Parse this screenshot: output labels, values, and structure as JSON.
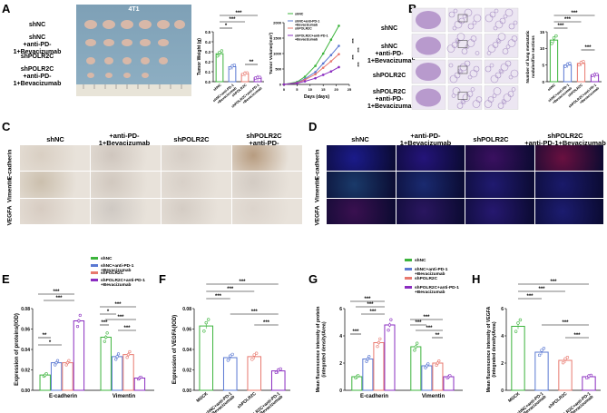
{
  "panels": {
    "A": "A",
    "B": "B",
    "C": "C",
    "D": "D",
    "E": "E",
    "F": "F",
    "G": "G",
    "H": "H"
  },
  "groups": [
    "shNC",
    "shNC\n+anti-PD-1+Bevacizumab",
    "shPOLR2C",
    "shPOLR2C\n+anti-PD-1+Bevacizumab"
  ],
  "groups_inline": [
    "shNC",
    "+anti-PD-1+Bevacizumab",
    "shPOLR2C",
    "shPOLR2C\n+anti-PD-1+Bevacizumab"
  ],
  "legend_groups": [
    "shNC",
    "shNC+anti-PD-1\n+Bevacizumab",
    "shPOLR2C",
    "shPOLR2C+anti-PD-1\n+Bevacizumab"
  ],
  "legend_groups_small": [
    "shNC",
    "shNC+anti-PD-1\n+Bevacizumab",
    "shPOLR2C",
    "shPOLR2C+anti-PD-1\n+Bevacizumab"
  ],
  "mock_groups": [
    "MOCK",
    "shNC+anti-PD-1\n+Bevacizumab",
    "shPOLR2C",
    "shPOLR2C+anti-PD-1\n+Bevacizumab"
  ],
  "photo_title": "4T1",
  "markers": [
    "E-cadherin",
    "Vimentin",
    "VEGFA"
  ],
  "colors": {
    "shNC": "#3cb43c",
    "combo": "#5a78d2",
    "shPOLR2C": "#e8786e",
    "polr_combo": "#8a2cc0"
  },
  "sig": {
    "s1": "*",
    "s2": "**",
    "s3": "***"
  },
  "chart_data": [
    {
      "panel": "A-weight",
      "type": "bar",
      "ylabel": "Tumor Weight (g)",
      "ylim": [
        0,
        0.5
      ],
      "yticks": [
        "0.0",
        "0.1",
        "0.2",
        "0.3",
        "0.4",
        "0.5"
      ],
      "categories": [
        "shNC",
        "shNC+anti-PD-1\n+Bevacizumab",
        "shPOLR2C",
        "shPOLR2C+anti-PD-1\n+Bevacizumab"
      ],
      "values": [
        0.28,
        0.15,
        0.08,
        0.04
      ]
    },
    {
      "panel": "A-volume",
      "type": "line",
      "ylabel": "Tumor Volume(mm³)",
      "xlabel": "Days (days)",
      "xticks": [
        "0",
        "5",
        "10",
        "15",
        "20",
        "25"
      ],
      "yticks": [
        "0",
        "500",
        "1000",
        "1500",
        "2000"
      ],
      "x": [
        0,
        5,
        8,
        12,
        15,
        18,
        21
      ],
      "series": [
        {
          "name": "shNC",
          "values": [
            0,
            80,
            250,
            600,
            1000,
            1450,
            1900
          ]
        },
        {
          "name": "shNC+anti-PD-1\n+Bevacizumab",
          "values": [
            0,
            60,
            180,
            400,
            680,
            950,
            1250
          ]
        },
        {
          "name": "shPOLR2C",
          "values": [
            0,
            50,
            150,
            330,
            540,
            750,
            980
          ]
        },
        {
          "name": "shPOLR2C+anti-PD-1\n+Bevacizumab",
          "values": [
            0,
            40,
            100,
            200,
            310,
            420,
            560
          ]
        }
      ]
    },
    {
      "panel": "B",
      "type": "bar",
      "ylabel": "Number of lung metastatic\nnodules/five sections",
      "ylim": [
        0,
        15
      ],
      "yticks": [
        "0",
        "5",
        "10",
        "15"
      ],
      "categories": [
        "shNC",
        "shNC+anti-PD-1\n+Bevacizumab",
        "shPOLR2C",
        "shPOLR2C+anti-PD-1\n+Bevacizumab"
      ],
      "values": [
        12.5,
        5.0,
        5.5,
        2.0
      ]
    },
    {
      "panel": "E",
      "type": "bar",
      "ylabel": "Expression of proteins(IOD)",
      "ylim": [
        0,
        0.08
      ],
      "yticks": [
        "0.00",
        "0.02",
        "0.04",
        "0.06",
        "0.08"
      ],
      "categories": [
        "E-cadherin",
        "Vimentin"
      ],
      "series": [
        {
          "name": "shNC",
          "values": [
            0.015,
            0.052
          ]
        },
        {
          "name": "shNC+anti-PD-1\n+Bevacizumab",
          "values": [
            0.027,
            0.033
          ]
        },
        {
          "name": "shPOLR2C",
          "values": [
            0.027,
            0.035
          ]
        },
        {
          "name": "shPOLR2C+anti-PD-1\n+Bevacizumab",
          "values": [
            0.068,
            0.012
          ]
        }
      ]
    },
    {
      "panel": "F",
      "type": "bar",
      "ylabel": "Expression of VEGFA(IOD)",
      "ylim": [
        0,
        0.08
      ],
      "yticks": [
        "0.00",
        "0.02",
        "0.04",
        "0.06",
        "0.08"
      ],
      "categories": [
        "MOCK",
        "shNC+anti-PD-1\n+Bevacizumab",
        "shPOLR2C",
        "shPOLR2C+anti-PD-1\n+Bevacizumab"
      ],
      "values": [
        0.063,
        0.032,
        0.033,
        0.019
      ]
    },
    {
      "panel": "G",
      "type": "bar",
      "ylabel": "Mean fluorescence intensity of protein\n(integrated density/Area)",
      "ylim": [
        0,
        6
      ],
      "yticks": [
        "0",
        "2",
        "4",
        "6"
      ],
      "categories": [
        "E-cadherin",
        "Vimentin"
      ],
      "series": [
        {
          "name": "shNC",
          "values": [
            1.0,
            3.2
          ]
        },
        {
          "name": "shNC+anti-PD-1\n+Bevacizumab",
          "values": [
            2.3,
            1.8
          ]
        },
        {
          "name": "shPOLR2C",
          "values": [
            3.5,
            2.0
          ]
        },
        {
          "name": "shPOLR2C+anti-PD-1\n+Bevacizumab",
          "values": [
            4.8,
            1.0
          ]
        }
      ]
    },
    {
      "panel": "H",
      "type": "bar",
      "ylabel": "Mean fluorescence intensity of VEGFA\n(integrated density/Area)",
      "ylim": [
        0,
        6
      ],
      "yticks": [
        "0",
        "2",
        "4",
        "6"
      ],
      "categories": [
        "MOCK",
        "shNC+anti-PD-1\n+Bevacizumab",
        "shPOLR2C",
        "shPOLR2C+anti-PD-1\n+Bevacizumab"
      ],
      "values": [
        4.7,
        2.8,
        2.2,
        1.0
      ]
    }
  ]
}
